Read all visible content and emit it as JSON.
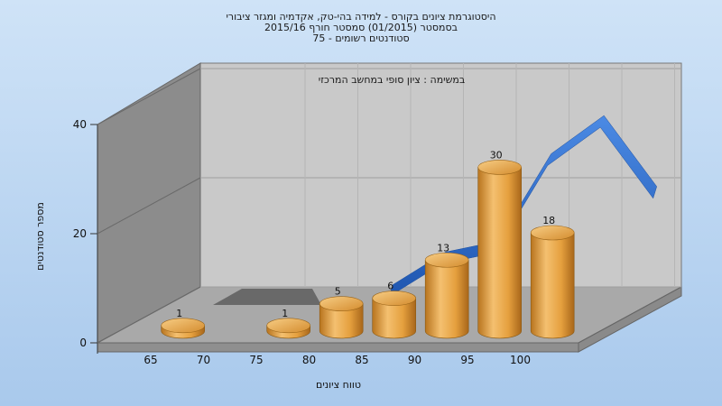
{
  "chart_data": {
    "type": "bar",
    "title_lines": [
      "היסטוגרמת ציונים בקורס - למידה בהי-טק, אקדמיה ומגזר ציבורי",
      "בסמסטר  (01/2015)  סמסטר חורף 2015/16",
      "סטודנטים רשומים - 75"
    ],
    "subtitle": "במשימה : ציון סופי במחשב המרכזי",
    "xlabel": "טווח ציונים",
    "ylabel": "מספר סטודנטים",
    "categories": [
      "65",
      "70",
      "75",
      "80",
      "85",
      "90",
      "95",
      "100"
    ],
    "series": [
      {
        "values": [
          1,
          0,
          1,
          5,
          6,
          13,
          30,
          18
        ]
      }
    ],
    "trend": [
      {
        "x": "80",
        "y": 5
      },
      {
        "x": "85",
        "y": 11
      },
      {
        "x": "90",
        "y": 13
      },
      {
        "x": "95",
        "y": 29
      },
      {
        "x": "100",
        "y": 36
      },
      {
        "x": "105",
        "y": 23
      }
    ],
    "yticks": [
      0,
      20,
      40
    ],
    "ylim": [
      0,
      40
    ],
    "grid": true,
    "colors": {
      "bar": "#e8a23c",
      "trend": "#2f6fd0",
      "back_wall": "#c9c9c9",
      "side_wall": "#8b8b8b",
      "floor": "#a9a9a9"
    }
  }
}
